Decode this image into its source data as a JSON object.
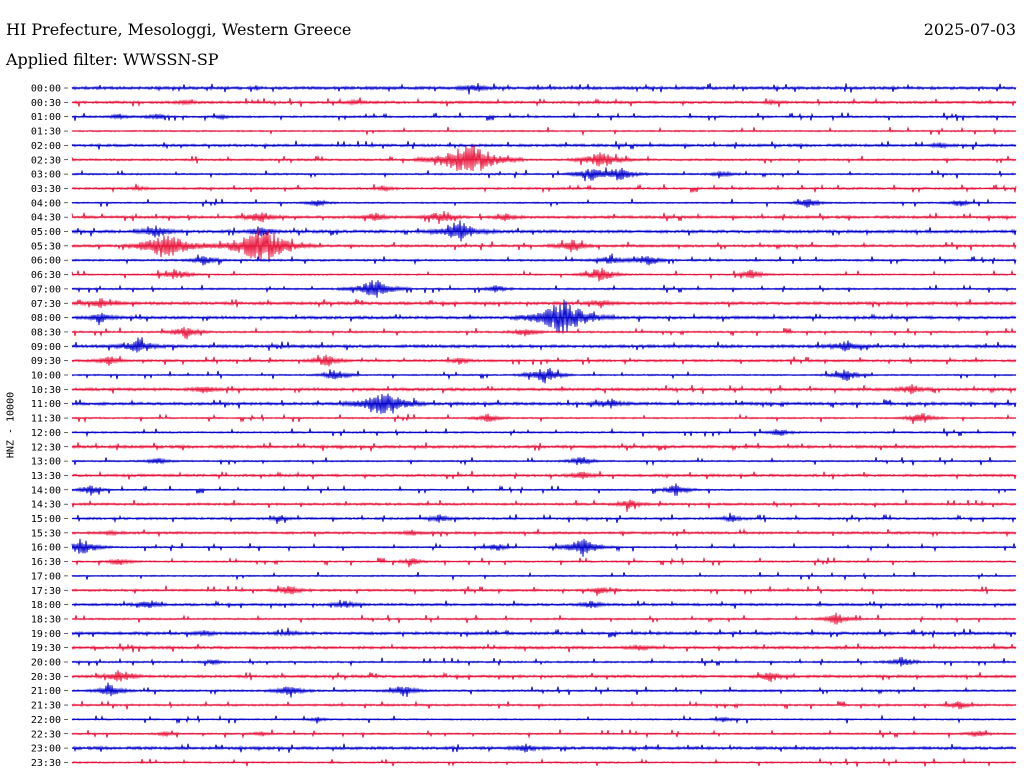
{
  "header": {
    "title": "HI Prefecture, Mesologgi, Western Greece",
    "date": "2025-07-03",
    "filter": "Applied filter: WWSSN-SP"
  },
  "chart_data": {
    "type": "line",
    "description_type": "helicorder",
    "ylabel": "HNZ - 10000",
    "trace_colors": [
      "#0000cc",
      "#e8133a"
    ],
    "rows": [
      {
        "label": "00:00",
        "events": [
          {
            "pos": 0.43,
            "amp": 2.5
          },
          {
            "pos": 0.42,
            "amp": 1.8
          }
        ]
      },
      {
        "label": "00:30",
        "events": [
          {
            "pos": 0.12,
            "amp": 1.5
          },
          {
            "pos": 0.3,
            "amp": 1.5
          },
          {
            "pos": 0.74,
            "amp": 1.5
          }
        ]
      },
      {
        "label": "01:00",
        "events": [
          {
            "pos": 0.05,
            "amp": 2
          },
          {
            "pos": 0.09,
            "amp": 2.5
          },
          {
            "pos": 0.16,
            "amp": 1.5
          }
        ]
      },
      {
        "label": "01:30",
        "events": []
      },
      {
        "label": "02:00",
        "events": [
          {
            "pos": 0.92,
            "amp": 2
          }
        ]
      },
      {
        "label": "02:30",
        "events": [
          {
            "pos": 0.42,
            "amp": 16
          },
          {
            "pos": 0.56,
            "amp": 8
          }
        ]
      },
      {
        "label": "03:00",
        "events": [
          {
            "pos": 0.55,
            "amp": 6
          },
          {
            "pos": 0.58,
            "amp": 6
          },
          {
            "pos": 0.69,
            "amp": 3
          }
        ]
      },
      {
        "label": "03:30",
        "events": [
          {
            "pos": 0.07,
            "amp": 1.5
          },
          {
            "pos": 0.33,
            "amp": 2
          }
        ]
      },
      {
        "label": "04:00",
        "events": [
          {
            "pos": 0.26,
            "amp": 3
          },
          {
            "pos": 0.78,
            "amp": 4
          },
          {
            "pos": 0.94,
            "amp": 3
          }
        ]
      },
      {
        "label": "04:30",
        "events": [
          {
            "pos": 0.2,
            "amp": 5
          },
          {
            "pos": 0.32,
            "amp": 4
          },
          {
            "pos": 0.39,
            "amp": 5
          },
          {
            "pos": 0.46,
            "amp": 3
          }
        ]
      },
      {
        "label": "05:00",
        "events": [
          {
            "pos": 0.09,
            "amp": 5
          },
          {
            "pos": 0.41,
            "amp": 9
          },
          {
            "pos": 0.2,
            "amp": 4
          }
        ]
      },
      {
        "label": "05:30",
        "events": [
          {
            "pos": 0.1,
            "amp": 12
          },
          {
            "pos": 0.2,
            "amp": 16
          },
          {
            "pos": 0.53,
            "amp": 5
          }
        ]
      },
      {
        "label": "06:00",
        "events": [
          {
            "pos": 0.14,
            "amp": 4
          },
          {
            "pos": 0.61,
            "amp": 5
          },
          {
            "pos": 0.57,
            "amp": 4
          }
        ]
      },
      {
        "label": "06:30",
        "events": [
          {
            "pos": 0.11,
            "amp": 5
          },
          {
            "pos": 0.56,
            "amp": 6
          },
          {
            "pos": 0.72,
            "amp": 4
          }
        ]
      },
      {
        "label": "07:00",
        "events": [
          {
            "pos": 0.32,
            "amp": 9
          },
          {
            "pos": 0.45,
            "amp": 3
          }
        ]
      },
      {
        "label": "07:30",
        "events": [
          {
            "pos": 0.03,
            "amp": 4
          },
          {
            "pos": 0.56,
            "amp": 3
          }
        ]
      },
      {
        "label": "08:00",
        "events": [
          {
            "pos": 0.52,
            "amp": 15
          },
          {
            "pos": 0.03,
            "amp": 4
          }
        ]
      },
      {
        "label": "08:30",
        "events": [
          {
            "pos": 0.12,
            "amp": 5
          },
          {
            "pos": 0.48,
            "amp": 4
          }
        ]
      },
      {
        "label": "09:00",
        "events": [
          {
            "pos": 0.07,
            "amp": 6
          },
          {
            "pos": 0.82,
            "amp": 5
          }
        ]
      },
      {
        "label": "09:30",
        "events": [
          {
            "pos": 0.04,
            "amp": 4
          },
          {
            "pos": 0.27,
            "amp": 5
          },
          {
            "pos": 0.41,
            "amp": 3
          }
        ]
      },
      {
        "label": "10:00",
        "events": [
          {
            "pos": 0.28,
            "amp": 5
          },
          {
            "pos": 0.5,
            "amp": 7
          },
          {
            "pos": 0.82,
            "amp": 5
          }
        ]
      },
      {
        "label": "10:30",
        "events": [
          {
            "pos": 0.14,
            "amp": 3
          },
          {
            "pos": 0.89,
            "amp": 4
          }
        ]
      },
      {
        "label": "11:00",
        "events": [
          {
            "pos": 0.33,
            "amp": 11
          },
          {
            "pos": 0.57,
            "amp": 4
          }
        ]
      },
      {
        "label": "11:30",
        "events": [
          {
            "pos": 0.44,
            "amp": 4
          },
          {
            "pos": 0.9,
            "amp": 5
          }
        ]
      },
      {
        "label": "12:00",
        "events": [
          {
            "pos": 0.75,
            "amp": 3
          }
        ]
      },
      {
        "label": "12:30",
        "events": []
      },
      {
        "label": "13:00",
        "events": [
          {
            "pos": 0.09,
            "amp": 3
          },
          {
            "pos": 0.54,
            "amp": 4
          }
        ]
      },
      {
        "label": "13:30",
        "events": [
          {
            "pos": 0.54,
            "amp": 3
          }
        ]
      },
      {
        "label": "14:00",
        "events": [
          {
            "pos": 0.02,
            "amp": 4
          },
          {
            "pos": 0.64,
            "amp": 5
          }
        ]
      },
      {
        "label": "14:30",
        "events": [
          {
            "pos": 0.59,
            "amp": 4
          }
        ]
      },
      {
        "label": "15:00",
        "events": [
          {
            "pos": 0.22,
            "amp": 2
          },
          {
            "pos": 0.39,
            "amp": 3
          },
          {
            "pos": 0.7,
            "amp": 3
          }
        ]
      },
      {
        "label": "15:30",
        "events": [
          {
            "pos": 0.04,
            "amp": 2
          },
          {
            "pos": 0.36,
            "amp": 2
          }
        ]
      },
      {
        "label": "16:00",
        "events": [
          {
            "pos": 0.01,
            "amp": 7
          },
          {
            "pos": 0.54,
            "amp": 8
          },
          {
            "pos": 0.45,
            "amp": 3
          }
        ]
      },
      {
        "label": "16:30",
        "events": [
          {
            "pos": 0.05,
            "amp": 3
          },
          {
            "pos": 0.36,
            "amp": 3
          }
        ]
      },
      {
        "label": "17:00",
        "events": []
      },
      {
        "label": "17:30",
        "events": [
          {
            "pos": 0.23,
            "amp": 4
          },
          {
            "pos": 0.56,
            "amp": 3
          }
        ]
      },
      {
        "label": "18:00",
        "events": [
          {
            "pos": 0.08,
            "amp": 3
          },
          {
            "pos": 0.29,
            "amp": 3
          },
          {
            "pos": 0.55,
            "amp": 3
          }
        ]
      },
      {
        "label": "18:30",
        "events": [
          {
            "pos": 0.81,
            "amp": 5
          }
        ]
      },
      {
        "label": "19:00",
        "events": [
          {
            "pos": 0.14,
            "amp": 2
          },
          {
            "pos": 0.23,
            "amp": 2
          }
        ]
      },
      {
        "label": "19:30",
        "events": [
          {
            "pos": 0.6,
            "amp": 2
          }
        ]
      },
      {
        "label": "20:00",
        "events": [
          {
            "pos": 0.15,
            "amp": 2
          },
          {
            "pos": 0.88,
            "amp": 4
          }
        ]
      },
      {
        "label": "20:30",
        "events": [
          {
            "pos": 0.05,
            "amp": 5
          },
          {
            "pos": 0.74,
            "amp": 4
          }
        ]
      },
      {
        "label": "21:00",
        "events": [
          {
            "pos": 0.04,
            "amp": 5
          },
          {
            "pos": 0.23,
            "amp": 5
          },
          {
            "pos": 0.35,
            "amp": 5
          }
        ]
      },
      {
        "label": "21:30",
        "events": [
          {
            "pos": 0.94,
            "amp": 3
          }
        ]
      },
      {
        "label": "22:00",
        "events": [
          {
            "pos": 0.26,
            "amp": 2
          },
          {
            "pos": 0.69,
            "amp": 2
          }
        ]
      },
      {
        "label": "22:30",
        "events": [
          {
            "pos": 0.1,
            "amp": 2
          },
          {
            "pos": 0.2,
            "amp": 2
          },
          {
            "pos": 0.96,
            "amp": 3
          }
        ]
      },
      {
        "label": "23:00",
        "events": [
          {
            "pos": 0.48,
            "amp": 3
          }
        ]
      },
      {
        "label": "23:30",
        "events": []
      }
    ]
  }
}
